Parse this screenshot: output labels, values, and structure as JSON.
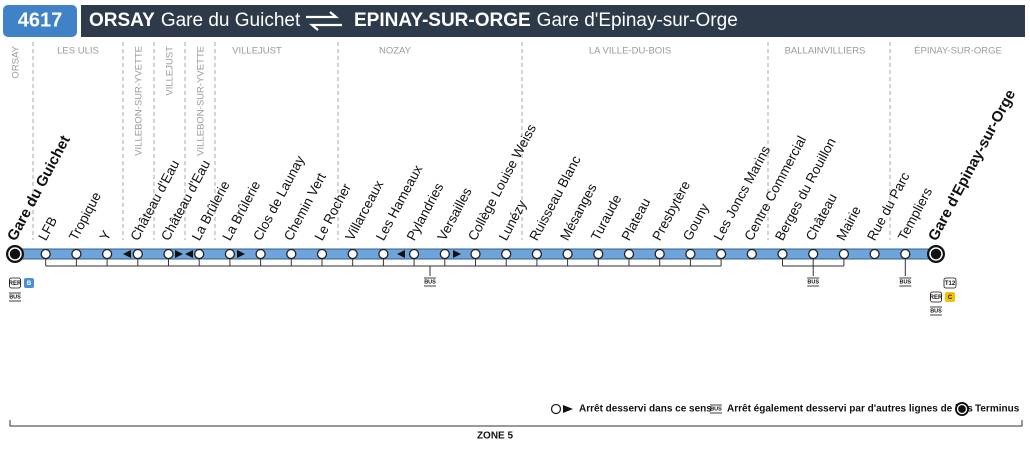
{
  "header": {
    "line": "4617",
    "origin_city": "ORSAY",
    "origin_station": "Gare du Guichet",
    "destination_city": "EPINAY-SUR-ORGE",
    "destination_station": "Gare d'Epinay-sur-Orge"
  },
  "communes": [
    "ORSAY",
    "LES ULIS",
    "VILLEBON-SUR-YVETTE",
    "VILLEJUST",
    "VILLEBON-SUR-YVETTE",
    "VILLEJUST",
    "NOZAY",
    "LA VILLE-DU-BOIS",
    "BALLAINVILLIERS",
    "ÉPINAY-SUR-ORGE"
  ],
  "stops": [
    "Gare du Guichet",
    "LFB",
    "Tropique",
    "Y",
    "Château d'Eau",
    "Château d'Eau",
    "La Brûlerie",
    "La Brûlerie",
    "Clos de Launay",
    "Chemin Vert",
    "Le Rocher",
    "Villarceaux",
    "Les Hameaux",
    "Pylandries",
    "Versailles",
    "Collège Louise Weiss",
    "Lunézy",
    "Ruisseau Blanc",
    "Mésanges",
    "Turaude",
    "Plateau",
    "Presbytère",
    "Gouny",
    "Les Joncs Marins",
    "Centre Commercial",
    "Berges du Rouillon",
    "Château",
    "Mairie",
    "Rue du Parc",
    "Templiers",
    "Gare d'Epinay-sur-Orge"
  ],
  "icons": {
    "rer": "RER",
    "bus": "BUS",
    "rer_b": "B",
    "tram": "T12",
    "rer_c": "C"
  },
  "legend": {
    "direction": "Arrêt desservi dans ce sens",
    "other_lines": "Arrêt également desservi par d'autres lignes de bus",
    "terminus": "Terminus"
  },
  "zone": "ZONE 5"
}
